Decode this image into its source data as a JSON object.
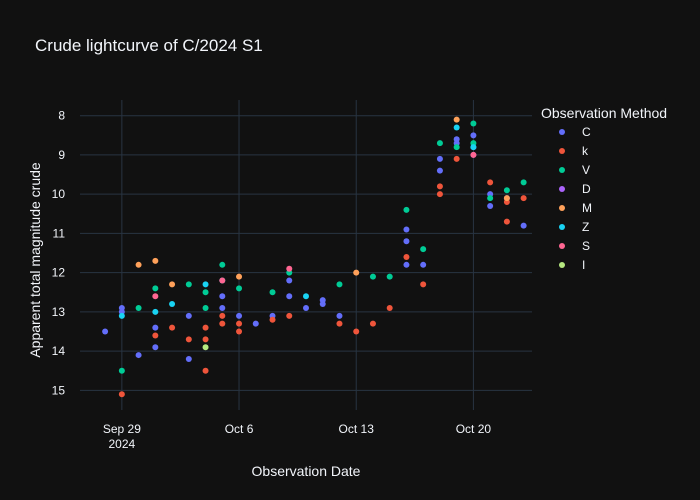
{
  "chart_data": {
    "type": "scatter",
    "title": "Crude lightcurve of C/2024 S1",
    "xlabel": "Observation Date",
    "ylabel": "Apparent total magnitude crude",
    "x_type": "date",
    "x_range": [
      "2024-09-26T12:00",
      "2024-10-23T12:00"
    ],
    "ylim": [
      15.5,
      7.6
    ],
    "y_reversed": true,
    "y_ticks": [
      8,
      9,
      10,
      11,
      12,
      13,
      14,
      15
    ],
    "x_ticks": [
      {
        "date": "2024-09-29",
        "label": "Sep 29",
        "sublabel": "2024"
      },
      {
        "date": "2024-10-06",
        "label": "Oct 6",
        "sublabel": ""
      },
      {
        "date": "2024-10-13",
        "label": "Oct 13",
        "sublabel": ""
      },
      {
        "date": "2024-10-20",
        "label": "Oct 20",
        "sublabel": ""
      }
    ],
    "grid": true,
    "legend_title": "Observation Method",
    "legend_position": "right",
    "series": [
      {
        "name": "C",
        "color": "#636efa",
        "points": [
          [
            "2024-09-28T00:00",
            13.5
          ],
          [
            "2024-09-29T00:00",
            12.9
          ],
          [
            "2024-09-29T00:00",
            13.0
          ],
          [
            "2024-09-30T00:00",
            14.1
          ],
          [
            "2024-10-01T00:00",
            13.4
          ],
          [
            "2024-10-01T00:00",
            13.9
          ],
          [
            "2024-10-03T00:00",
            13.1
          ],
          [
            "2024-10-03T00:00",
            14.2
          ],
          [
            "2024-10-05T00:00",
            12.6
          ],
          [
            "2024-10-05T00:00",
            12.9
          ],
          [
            "2024-10-06T00:00",
            13.1
          ],
          [
            "2024-10-07T00:00",
            13.3
          ],
          [
            "2024-10-08T00:00",
            13.1
          ],
          [
            "2024-10-09T00:00",
            12.2
          ],
          [
            "2024-10-09T00:00",
            12.6
          ],
          [
            "2024-10-10T00:00",
            12.9
          ],
          [
            "2024-10-11T00:00",
            12.7
          ],
          [
            "2024-10-11T00:00",
            12.8
          ],
          [
            "2024-10-12T00:00",
            13.1
          ],
          [
            "2024-10-16T00:00",
            11.8
          ],
          [
            "2024-10-16T00:00",
            11.2
          ],
          [
            "2024-10-16T00:00",
            10.9
          ],
          [
            "2024-10-17T00:00",
            11.8
          ],
          [
            "2024-10-18T00:00",
            9.1
          ],
          [
            "2024-10-18T00:00",
            9.4
          ],
          [
            "2024-10-19T00:00",
            8.6
          ],
          [
            "2024-10-19T00:00",
            8.7
          ],
          [
            "2024-10-20T00:00",
            8.5
          ],
          [
            "2024-10-20T00:00",
            8.8
          ],
          [
            "2024-10-21T00:00",
            10.3
          ],
          [
            "2024-10-21T00:00",
            10.0
          ],
          [
            "2024-10-22T00:00",
            10.1
          ],
          [
            "2024-10-23T00:00",
            10.8
          ]
        ]
      },
      {
        "name": "k",
        "color": "#ef553b",
        "points": [
          [
            "2024-09-29T00:00",
            15.1
          ],
          [
            "2024-10-01T00:00",
            13.6
          ],
          [
            "2024-10-02T00:00",
            13.4
          ],
          [
            "2024-10-03T00:00",
            13.7
          ],
          [
            "2024-10-04T00:00",
            13.7
          ],
          [
            "2024-10-04T00:00",
            14.5
          ],
          [
            "2024-10-04T00:00",
            13.4
          ],
          [
            "2024-10-05T00:00",
            13.1
          ],
          [
            "2024-10-05T00:00",
            13.3
          ],
          [
            "2024-10-06T00:00",
            13.3
          ],
          [
            "2024-10-06T00:00",
            13.5
          ],
          [
            "2024-10-08T00:00",
            13.2
          ],
          [
            "2024-10-09T00:00",
            13.1
          ],
          [
            "2024-10-12T00:00",
            13.3
          ],
          [
            "2024-10-13T00:00",
            13.5
          ],
          [
            "2024-10-14T00:00",
            13.3
          ],
          [
            "2024-10-15T00:00",
            12.9
          ],
          [
            "2024-10-16T00:00",
            11.6
          ],
          [
            "2024-10-17T00:00",
            12.3
          ],
          [
            "2024-10-18T00:00",
            10.0
          ],
          [
            "2024-10-18T00:00",
            9.8
          ],
          [
            "2024-10-19T00:00",
            9.1
          ],
          [
            "2024-10-21T00:00",
            9.7
          ],
          [
            "2024-10-22T00:00",
            10.2
          ],
          [
            "2024-10-22T00:00",
            10.7
          ],
          [
            "2024-10-23T00:00",
            10.1
          ]
        ]
      },
      {
        "name": "V",
        "color": "#00cc96",
        "points": [
          [
            "2024-09-29T00:00",
            14.5
          ],
          [
            "2024-09-30T00:00",
            12.9
          ],
          [
            "2024-10-01T00:00",
            12.4
          ],
          [
            "2024-10-03T00:00",
            12.3
          ],
          [
            "2024-10-04T00:00",
            12.5
          ],
          [
            "2024-10-04T00:00",
            12.9
          ],
          [
            "2024-10-05T00:00",
            11.8
          ],
          [
            "2024-10-06T00:00",
            12.4
          ],
          [
            "2024-10-08T00:00",
            12.5
          ],
          [
            "2024-10-09T00:00",
            12.0
          ],
          [
            "2024-10-12T00:00",
            12.3
          ],
          [
            "2024-10-14T00:00",
            12.1
          ],
          [
            "2024-10-15T00:00",
            12.1
          ],
          [
            "2024-10-16T00:00",
            10.4
          ],
          [
            "2024-10-17T00:00",
            11.4
          ],
          [
            "2024-10-18T00:00",
            8.7
          ],
          [
            "2024-10-19T00:00",
            8.8
          ],
          [
            "2024-10-20T00:00",
            8.2
          ],
          [
            "2024-10-20T00:00",
            8.7
          ],
          [
            "2024-10-21T00:00",
            10.1
          ],
          [
            "2024-10-22T00:00",
            9.9
          ],
          [
            "2024-10-23T00:00",
            9.7
          ]
        ]
      },
      {
        "name": "D",
        "color": "#ab63fa",
        "points": [
          [
            "2024-10-20T00:00",
            9.0
          ]
        ]
      },
      {
        "name": "M",
        "color": "#ffa15a",
        "points": [
          [
            "2024-09-30T00:00",
            11.8
          ],
          [
            "2024-10-01T00:00",
            11.7
          ],
          [
            "2024-10-02T00:00",
            12.3
          ],
          [
            "2024-10-06T00:00",
            12.1
          ],
          [
            "2024-10-13T00:00",
            12.0
          ],
          [
            "2024-10-19T00:00",
            8.1
          ],
          [
            "2024-10-22T00:00",
            10.1
          ]
        ]
      },
      {
        "name": "Z",
        "color": "#19d3f3",
        "points": [
          [
            "2024-09-29T00:00",
            13.1
          ],
          [
            "2024-10-01T00:00",
            13.0
          ],
          [
            "2024-10-02T00:00",
            12.8
          ],
          [
            "2024-10-04T00:00",
            12.3
          ],
          [
            "2024-10-05T00:00",
            12.2
          ],
          [
            "2024-10-10T00:00",
            12.6
          ],
          [
            "2024-10-19T00:00",
            8.3
          ],
          [
            "2024-10-20T00:00",
            8.8
          ]
        ]
      },
      {
        "name": "S",
        "color": "#ff6692",
        "points": [
          [
            "2024-10-01T00:00",
            12.6
          ],
          [
            "2024-10-05T00:00",
            12.2
          ],
          [
            "2024-10-09T00:00",
            11.9
          ],
          [
            "2024-10-20T00:00",
            9.0
          ]
        ]
      },
      {
        "name": "I",
        "color": "#b6e880",
        "points": [
          [
            "2024-10-04T00:00",
            13.9
          ]
        ]
      }
    ]
  }
}
